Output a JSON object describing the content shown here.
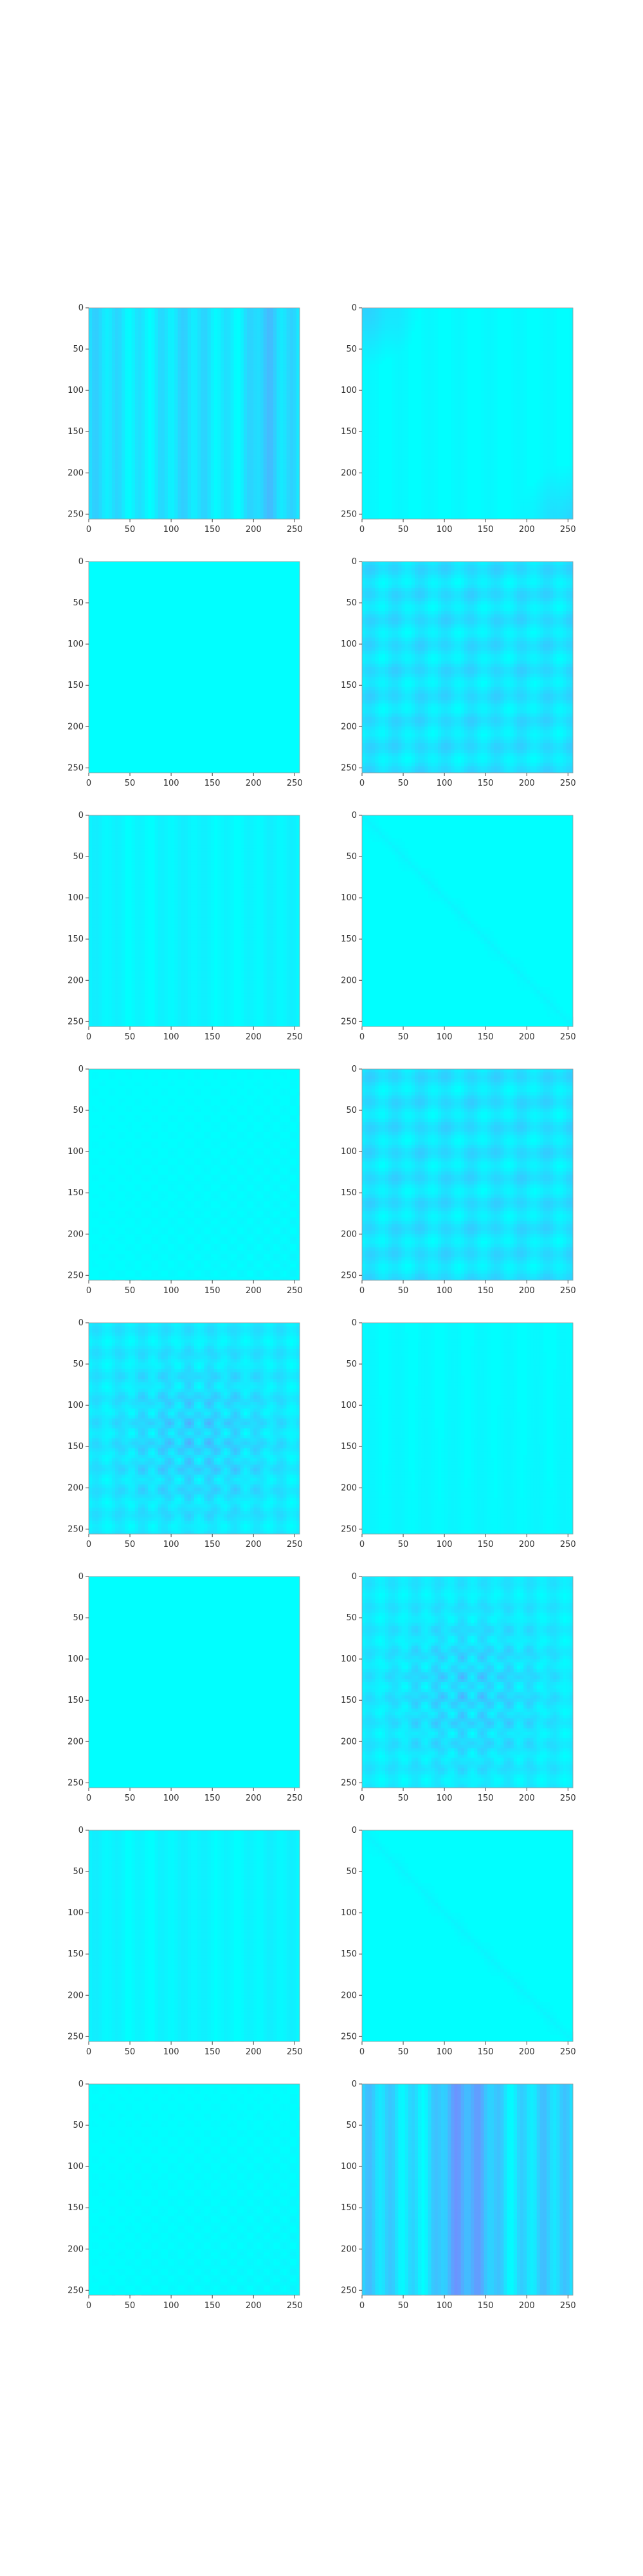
{
  "figure": {
    "background": "#ffffff"
  },
  "chart_data": [
    {
      "type": "heatmap",
      "title": "",
      "xlabel": "",
      "ylabel": "",
      "xlim": [
        0,
        256
      ],
      "ylim": [
        256,
        0
      ],
      "xticks": [
        0,
        50,
        100,
        150,
        200,
        250
      ],
      "yticks": [
        0,
        50,
        100,
        150,
        200,
        250
      ],
      "xtick_labels": [
        "0",
        "50",
        "100",
        "150",
        "200",
        "250"
      ],
      "ytick_labels": [
        "0",
        "50",
        "100",
        "150",
        "200",
        "250"
      ],
      "colormap": "cool",
      "colors": {
        "low": "#00ffff",
        "high": "#ff00ff"
      },
      "grid": false,
      "pattern": "vertical-stripes",
      "intensity": 0.28,
      "stripe_centers": [
        210
      ],
      "note": "Mostly cyan with vertical stripes; darker bands around columns 200–215."
    },
    {
      "type": "heatmap",
      "title": "",
      "xlabel": "",
      "ylabel": "",
      "xlim": [
        0,
        256
      ],
      "ylim": [
        256,
        0
      ],
      "xticks": [
        0,
        50,
        100,
        150,
        200,
        250
      ],
      "yticks": [
        0,
        50,
        100,
        150,
        200,
        250
      ],
      "xtick_labels": [
        "0",
        "50",
        "100",
        "150",
        "200",
        "250"
      ],
      "ytick_labels": [
        "0",
        "50",
        "100",
        "150",
        "200",
        "250"
      ],
      "colormap": "cool",
      "colors": {
        "low": "#00ffff",
        "high": "#ff00ff"
      },
      "grid": false,
      "pattern": "corners",
      "intensity": 0.18
    },
    {
      "type": "heatmap",
      "title": "",
      "xlabel": "",
      "ylabel": "",
      "xlim": [
        0,
        256
      ],
      "ylim": [
        256,
        0
      ],
      "xticks": [
        0,
        50,
        100,
        150,
        200,
        250
      ],
      "yticks": [
        0,
        50,
        100,
        150,
        200,
        250
      ],
      "xtick_labels": [
        "0",
        "50",
        "100",
        "150",
        "200",
        "250"
      ],
      "ytick_labels": [
        "0",
        "50",
        "100",
        "150",
        "200",
        "250"
      ],
      "colormap": "cool",
      "colors": {
        "low": "#00ffff",
        "high": "#ff00ff"
      },
      "grid": false,
      "pattern": "flat",
      "intensity": 0.03
    },
    {
      "type": "heatmap",
      "title": "",
      "xlabel": "",
      "ylabel": "",
      "xlim": [
        0,
        256
      ],
      "ylim": [
        256,
        0
      ],
      "xticks": [
        0,
        50,
        100,
        150,
        200,
        250
      ],
      "yticks": [
        0,
        50,
        100,
        150,
        200,
        250
      ],
      "xtick_labels": [
        "0",
        "50",
        "100",
        "150",
        "200",
        "250"
      ],
      "ytick_labels": [
        "0",
        "50",
        "100",
        "150",
        "200",
        "250"
      ],
      "colormap": "cool",
      "colors": {
        "low": "#00ffff",
        "high": "#ff00ff"
      },
      "grid": false,
      "pattern": "grid",
      "intensity": 0.24
    },
    {
      "type": "heatmap",
      "title": "",
      "xlabel": "",
      "ylabel": "",
      "xlim": [
        0,
        256
      ],
      "ylim": [
        256,
        0
      ],
      "xticks": [
        0,
        50,
        100,
        150,
        200,
        250
      ],
      "yticks": [
        0,
        50,
        100,
        150,
        200,
        250
      ],
      "xtick_labels": [
        "0",
        "50",
        "100",
        "150",
        "200",
        "250"
      ],
      "ytick_labels": [
        "0",
        "50",
        "100",
        "150",
        "200",
        "250"
      ],
      "colormap": "cool",
      "colors": {
        "low": "#00ffff",
        "high": "#ff00ff"
      },
      "grid": false,
      "pattern": "vertical-stripes",
      "intensity": 0.1
    },
    {
      "type": "heatmap",
      "title": "",
      "xlabel": "",
      "ylabel": "",
      "xlim": [
        0,
        256
      ],
      "ylim": [
        256,
        0
      ],
      "xticks": [
        0,
        50,
        100,
        150,
        200,
        250
      ],
      "yticks": [
        0,
        50,
        100,
        150,
        200,
        250
      ],
      "xtick_labels": [
        "0",
        "50",
        "100",
        "150",
        "200",
        "250"
      ],
      "ytick_labels": [
        "0",
        "50",
        "100",
        "150",
        "200",
        "250"
      ],
      "colormap": "cool",
      "colors": {
        "low": "#00ffff",
        "high": "#ff00ff"
      },
      "grid": false,
      "pattern": "diagonal",
      "intensity": 0.08
    },
    {
      "type": "heatmap",
      "title": "",
      "xlabel": "",
      "ylabel": "",
      "xlim": [
        0,
        256
      ],
      "ylim": [
        256,
        0
      ],
      "xticks": [
        0,
        50,
        100,
        150,
        200,
        250
      ],
      "yticks": [
        0,
        50,
        100,
        150,
        200,
        250
      ],
      "xtick_labels": [
        "0",
        "50",
        "100",
        "150",
        "200",
        "250"
      ],
      "ytick_labels": [
        "0",
        "50",
        "100",
        "150",
        "200",
        "250"
      ],
      "colormap": "cool",
      "colors": {
        "low": "#00ffff",
        "high": "#ff00ff"
      },
      "grid": false,
      "pattern": "dots",
      "intensity": 0.1
    },
    {
      "type": "heatmap",
      "title": "",
      "xlabel": "",
      "ylabel": "",
      "xlim": [
        0,
        256
      ],
      "ylim": [
        256,
        0
      ],
      "xticks": [
        0,
        50,
        100,
        150,
        200,
        250
      ],
      "yticks": [
        0,
        50,
        100,
        150,
        200,
        250
      ],
      "xtick_labels": [
        "0",
        "50",
        "100",
        "150",
        "200",
        "250"
      ],
      "ytick_labels": [
        "0",
        "50",
        "100",
        "150",
        "200",
        "250"
      ],
      "colormap": "cool",
      "colors": {
        "low": "#00ffff",
        "high": "#ff00ff"
      },
      "grid": false,
      "pattern": "grid",
      "intensity": 0.24
    },
    {
      "type": "heatmap",
      "title": "",
      "xlabel": "",
      "ylabel": "",
      "xlim": [
        0,
        256
      ],
      "ylim": [
        256,
        0
      ],
      "xticks": [
        0,
        50,
        100,
        150,
        200,
        250
      ],
      "yticks": [
        0,
        50,
        100,
        150,
        200,
        250
      ],
      "xtick_labels": [
        "0",
        "50",
        "100",
        "150",
        "200",
        "250"
      ],
      "ytick_labels": [
        "0",
        "50",
        "100",
        "150",
        "200",
        "250"
      ],
      "colormap": "cool",
      "colors": {
        "low": "#00ffff",
        "high": "#ff00ff"
      },
      "grid": false,
      "pattern": "grid-center",
      "intensity": 0.32
    },
    {
      "type": "heatmap",
      "title": "",
      "xlabel": "",
      "ylabel": "",
      "xlim": [
        0,
        256
      ],
      "ylim": [
        256,
        0
      ],
      "xticks": [
        0,
        50,
        100,
        150,
        200,
        250
      ],
      "yticks": [
        0,
        50,
        100,
        150,
        200,
        250
      ],
      "xtick_labels": [
        "0",
        "50",
        "100",
        "150",
        "200",
        "250"
      ],
      "ytick_labels": [
        "0",
        "50",
        "100",
        "150",
        "200",
        "250"
      ],
      "colormap": "cool",
      "colors": {
        "low": "#00ffff",
        "high": "#ff00ff"
      },
      "grid": false,
      "pattern": "light-vertical",
      "intensity": 0.08
    },
    {
      "type": "heatmap",
      "title": "",
      "xlabel": "",
      "ylabel": "",
      "xlim": [
        0,
        256
      ],
      "ylim": [
        256,
        0
      ],
      "xticks": [
        0,
        50,
        100,
        150,
        200,
        250
      ],
      "yticks": [
        0,
        50,
        100,
        150,
        200,
        250
      ],
      "xtick_labels": [
        "0",
        "50",
        "100",
        "150",
        "200",
        "250"
      ],
      "ytick_labels": [
        "0",
        "50",
        "100",
        "150",
        "200",
        "250"
      ],
      "colormap": "cool",
      "colors": {
        "low": "#00ffff",
        "high": "#ff00ff"
      },
      "grid": false,
      "pattern": "flat",
      "intensity": 0.02
    },
    {
      "type": "heatmap",
      "title": "",
      "xlabel": "",
      "ylabel": "",
      "xlim": [
        0,
        256
      ],
      "ylim": [
        256,
        0
      ],
      "xticks": [
        0,
        50,
        100,
        150,
        200,
        250
      ],
      "yticks": [
        0,
        50,
        100,
        150,
        200,
        250
      ],
      "xtick_labels": [
        "0",
        "50",
        "100",
        "150",
        "200",
        "250"
      ],
      "ytick_labels": [
        "0",
        "50",
        "100",
        "150",
        "200",
        "250"
      ],
      "colormap": "cool",
      "colors": {
        "low": "#00ffff",
        "high": "#ff00ff"
      },
      "grid": false,
      "pattern": "grid-center",
      "intensity": 0.3
    },
    {
      "type": "heatmap",
      "title": "",
      "xlabel": "",
      "ylabel": "",
      "xlim": [
        0,
        256
      ],
      "ylim": [
        256,
        0
      ],
      "xticks": [
        0,
        50,
        100,
        150,
        200,
        250
      ],
      "yticks": [
        0,
        50,
        100,
        150,
        200,
        250
      ],
      "xtick_labels": [
        "0",
        "50",
        "100",
        "150",
        "200",
        "250"
      ],
      "ytick_labels": [
        "0",
        "50",
        "100",
        "150",
        "200",
        "250"
      ],
      "colormap": "cool",
      "colors": {
        "low": "#00ffff",
        "high": "#ff00ff"
      },
      "grid": false,
      "pattern": "vertical-stripes",
      "intensity": 0.1
    },
    {
      "type": "heatmap",
      "title": "",
      "xlabel": "",
      "ylabel": "",
      "xlim": [
        0,
        256
      ],
      "ylim": [
        256,
        0
      ],
      "xticks": [
        0,
        50,
        100,
        150,
        200,
        250
      ],
      "yticks": [
        0,
        50,
        100,
        150,
        200,
        250
      ],
      "xtick_labels": [
        "0",
        "50",
        "100",
        "150",
        "200",
        "250"
      ],
      "ytick_labels": [
        "0",
        "50",
        "100",
        "150",
        "200",
        "250"
      ],
      "colormap": "cool",
      "colors": {
        "low": "#00ffff",
        "high": "#ff00ff"
      },
      "grid": false,
      "pattern": "diagonal",
      "intensity": 0.08
    },
    {
      "type": "heatmap",
      "title": "",
      "xlabel": "",
      "ylabel": "",
      "xlim": [
        0,
        256
      ],
      "ylim": [
        256,
        0
      ],
      "xticks": [
        0,
        50,
        100,
        150,
        200,
        250
      ],
      "yticks": [
        0,
        50,
        100,
        150,
        200,
        250
      ],
      "xtick_labels": [
        "0",
        "50",
        "100",
        "150",
        "200",
        "250"
      ],
      "ytick_labels": [
        "0",
        "50",
        "100",
        "150",
        "200",
        "250"
      ],
      "colormap": "cool",
      "colors": {
        "low": "#00ffff",
        "high": "#ff00ff"
      },
      "grid": false,
      "pattern": "dots",
      "intensity": 0.1
    },
    {
      "type": "heatmap",
      "title": "",
      "xlabel": "",
      "ylabel": "",
      "xlim": [
        0,
        256
      ],
      "ylim": [
        256,
        0
      ],
      "xticks": [
        0,
        50,
        100,
        150,
        200,
        250
      ],
      "yticks": [
        0,
        50,
        100,
        150,
        200,
        250
      ],
      "xtick_labels": [
        "0",
        "50",
        "100",
        "150",
        "200",
        "250"
      ],
      "ytick_labels": [
        "0",
        "50",
        "100",
        "150",
        "200",
        "250"
      ],
      "colormap": "cool",
      "colors": {
        "low": "#00ffff",
        "high": "#ff00ff"
      },
      "grid": false,
      "pattern": "vertical-stripes",
      "intensity": 0.38,
      "stripe_centers": [
        105,
        128,
        151
      ]
    }
  ]
}
